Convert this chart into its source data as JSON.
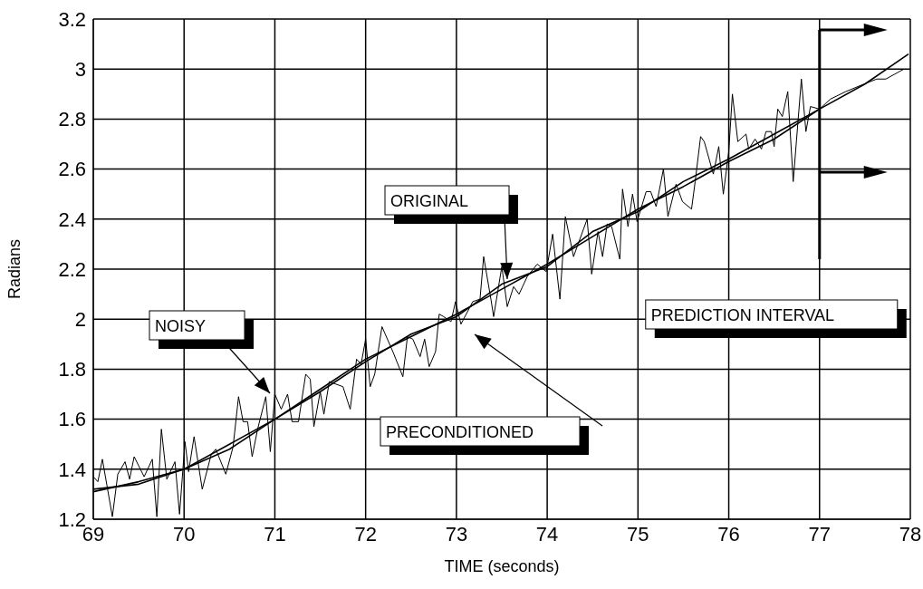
{
  "chart_data": {
    "type": "line",
    "xlabel": "TIME (seconds)",
    "ylabel": "Radians",
    "xlim": [
      69,
      78
    ],
    "xticks": [
      69,
      70,
      71,
      72,
      73,
      74,
      75,
      76,
      77,
      78
    ],
    "ylim": [
      1.2,
      3.2
    ],
    "yticks": [
      1.2,
      1.4,
      1.6,
      1.8,
      2,
      2.2,
      2.4,
      2.6,
      2.8,
      3,
      3.2
    ],
    "grid": true,
    "marker": "none",
    "line_style": "solid",
    "series": [
      {
        "color": "#000000",
        "x": [
          69.0,
          69.05,
          69.1,
          69.21,
          69.27,
          69.35,
          69.4,
          69.45,
          69.56,
          69.65,
          69.7,
          69.75,
          69.81,
          69.9,
          69.95,
          70.01,
          70.05,
          70.11,
          70.2,
          70.3,
          70.35,
          70.46,
          70.54,
          70.6,
          70.65,
          70.7,
          70.75,
          70.81,
          70.9,
          70.95,
          71.0,
          71.07,
          71.14,
          71.19,
          71.26,
          71.34,
          71.39,
          71.43,
          71.5,
          71.54,
          71.6,
          71.75,
          71.83,
          71.9,
          71.95,
          72.0,
          72.05,
          72.1,
          72.18,
          72.3,
          72.41,
          72.46,
          72.52,
          72.6,
          72.65,
          72.7,
          72.77,
          72.81,
          72.86,
          72.94,
          72.99,
          73.05,
          73.18,
          73.26,
          73.3,
          73.38,
          73.41,
          73.5,
          73.56,
          73.63,
          73.69,
          73.78,
          73.89,
          73.99,
          74.06,
          74.14,
          74.2,
          74.29,
          74.44,
          74.49,
          74.56,
          74.61,
          74.66,
          74.71,
          74.8,
          74.83,
          74.89,
          74.94,
          74.99,
          75.09,
          75.14,
          75.2,
          75.28,
          75.33,
          75.42,
          75.49,
          75.59,
          75.63,
          75.69,
          75.73,
          75.83,
          75.89,
          75.94,
          76.0,
          76.04,
          76.1,
          76.19,
          76.22,
          76.29,
          76.36,
          76.41,
          76.47,
          76.5,
          76.54,
          76.59,
          76.65,
          76.71,
          76.8,
          76.85,
          76.9,
          77.0,
          77.12,
          77.29,
          77.49,
          77.63,
          77.73,
          77.83,
          77.93
        ],
        "values": [
          1.37,
          1.35,
          1.44,
          1.21,
          1.38,
          1.43,
          1.36,
          1.45,
          1.37,
          1.44,
          1.21,
          1.56,
          1.36,
          1.43,
          1.22,
          1.51,
          1.39,
          1.53,
          1.32,
          1.46,
          1.48,
          1.38,
          1.49,
          1.69,
          1.59,
          1.59,
          1.45,
          1.56,
          1.69,
          1.47,
          1.7,
          1.64,
          1.7,
          1.59,
          1.59,
          1.78,
          1.76,
          1.57,
          1.71,
          1.62,
          1.75,
          1.73,
          1.64,
          1.84,
          1.82,
          1.92,
          1.73,
          1.78,
          1.97,
          1.87,
          1.77,
          1.93,
          1.92,
          1.85,
          1.92,
          1.81,
          1.87,
          2.02,
          2.01,
          1.99,
          2.07,
          1.98,
          2.07,
          2.08,
          2.25,
          2.08,
          2.01,
          2.21,
          2.05,
          2.13,
          2.1,
          2.17,
          2.22,
          2.19,
          2.34,
          2.08,
          2.41,
          2.25,
          2.4,
          2.18,
          2.35,
          2.25,
          2.38,
          2.37,
          2.24,
          2.52,
          2.37,
          2.5,
          2.39,
          2.51,
          2.51,
          2.45,
          2.6,
          2.41,
          2.54,
          2.47,
          2.44,
          2.55,
          2.73,
          2.71,
          2.58,
          2.69,
          2.5,
          2.67,
          2.9,
          2.71,
          2.74,
          2.68,
          2.72,
          2.68,
          2.75,
          2.75,
          2.69,
          2.84,
          2.81,
          2.91,
          2.55,
          2.96,
          2.75,
          2.85,
          2.84,
          2.88,
          2.91,
          2.94,
          2.96,
          2.96,
          2.98,
          3.0
        ]
      },
      {
        "color": "#000000",
        "x": [
          69,
          69.5,
          70,
          70.5,
          71,
          71.5,
          72,
          72.5,
          73,
          73.5,
          74,
          74.5,
          75,
          75.5,
          76,
          76.5,
          77,
          77.5,
          77.98
        ],
        "values": [
          1.31,
          1.35,
          1.4,
          1.48,
          1.6,
          1.72,
          1.84,
          1.93,
          2.02,
          2.12,
          2.22,
          2.33,
          2.44,
          2.53,
          2.63,
          2.72,
          2.84,
          2.94,
          3.06
        ]
      },
      {
        "color": "#000000",
        "x": [
          69,
          69.5,
          70,
          70.5,
          71,
          71.5,
          72,
          72.5,
          73,
          73.5,
          74,
          74.5,
          75,
          75.5,
          76,
          76.5,
          77
        ],
        "values": [
          1.32,
          1.34,
          1.4,
          1.5,
          1.6,
          1.71,
          1.83,
          1.94,
          2.01,
          2.14,
          2.21,
          2.35,
          2.43,
          2.55,
          2.64,
          2.74,
          2.84
        ]
      }
    ],
    "annotations": [
      "NOISY",
      "ORIGINAL",
      "PRECONDITIONED"
    ],
    "ref_lines": [
      {
        "axis": "x",
        "value": 77,
        "label": "PREDICTION INTERVAL"
      }
    ]
  }
}
